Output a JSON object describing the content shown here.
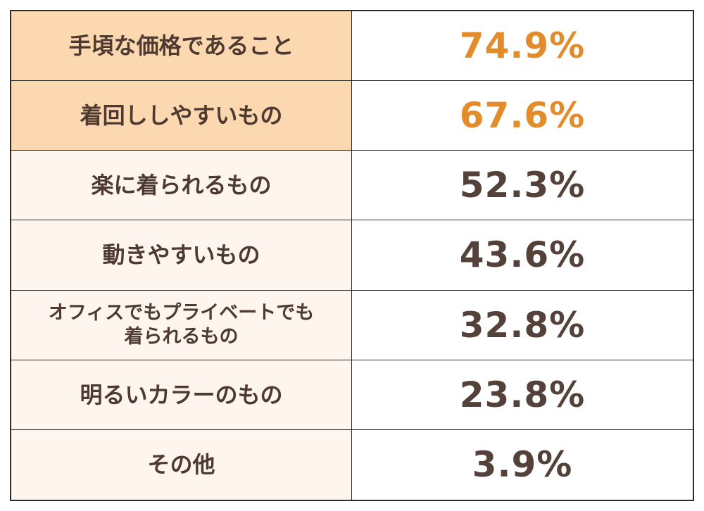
{
  "colors": {
    "highlight_label_bg": "#fbd8b0",
    "normal_label_bg": "#fdf5ee",
    "highlight_value_text": "#e38c2c",
    "normal_value_text": "#53413a",
    "label_text": "#4e3a30",
    "border": "#2a2a2a"
  },
  "chart_data": {
    "type": "table",
    "rows": [
      {
        "label": "手頃な価格であること",
        "value": "74.9%",
        "highlight": true
      },
      {
        "label": "着回ししやすいもの",
        "value": "67.6%",
        "highlight": true
      },
      {
        "label": "楽に着られるもの",
        "value": "52.3%",
        "highlight": false
      },
      {
        "label": "動きやすいもの",
        "value": "43.6%",
        "highlight": false
      },
      {
        "label": "オフィスでもプライベートでも\n着られるもの",
        "value": "32.8%",
        "highlight": false
      },
      {
        "label": "明るいカラーのもの",
        "value": "23.8%",
        "highlight": false
      },
      {
        "label": "その他",
        "value": "3.9%",
        "highlight": false
      }
    ]
  }
}
